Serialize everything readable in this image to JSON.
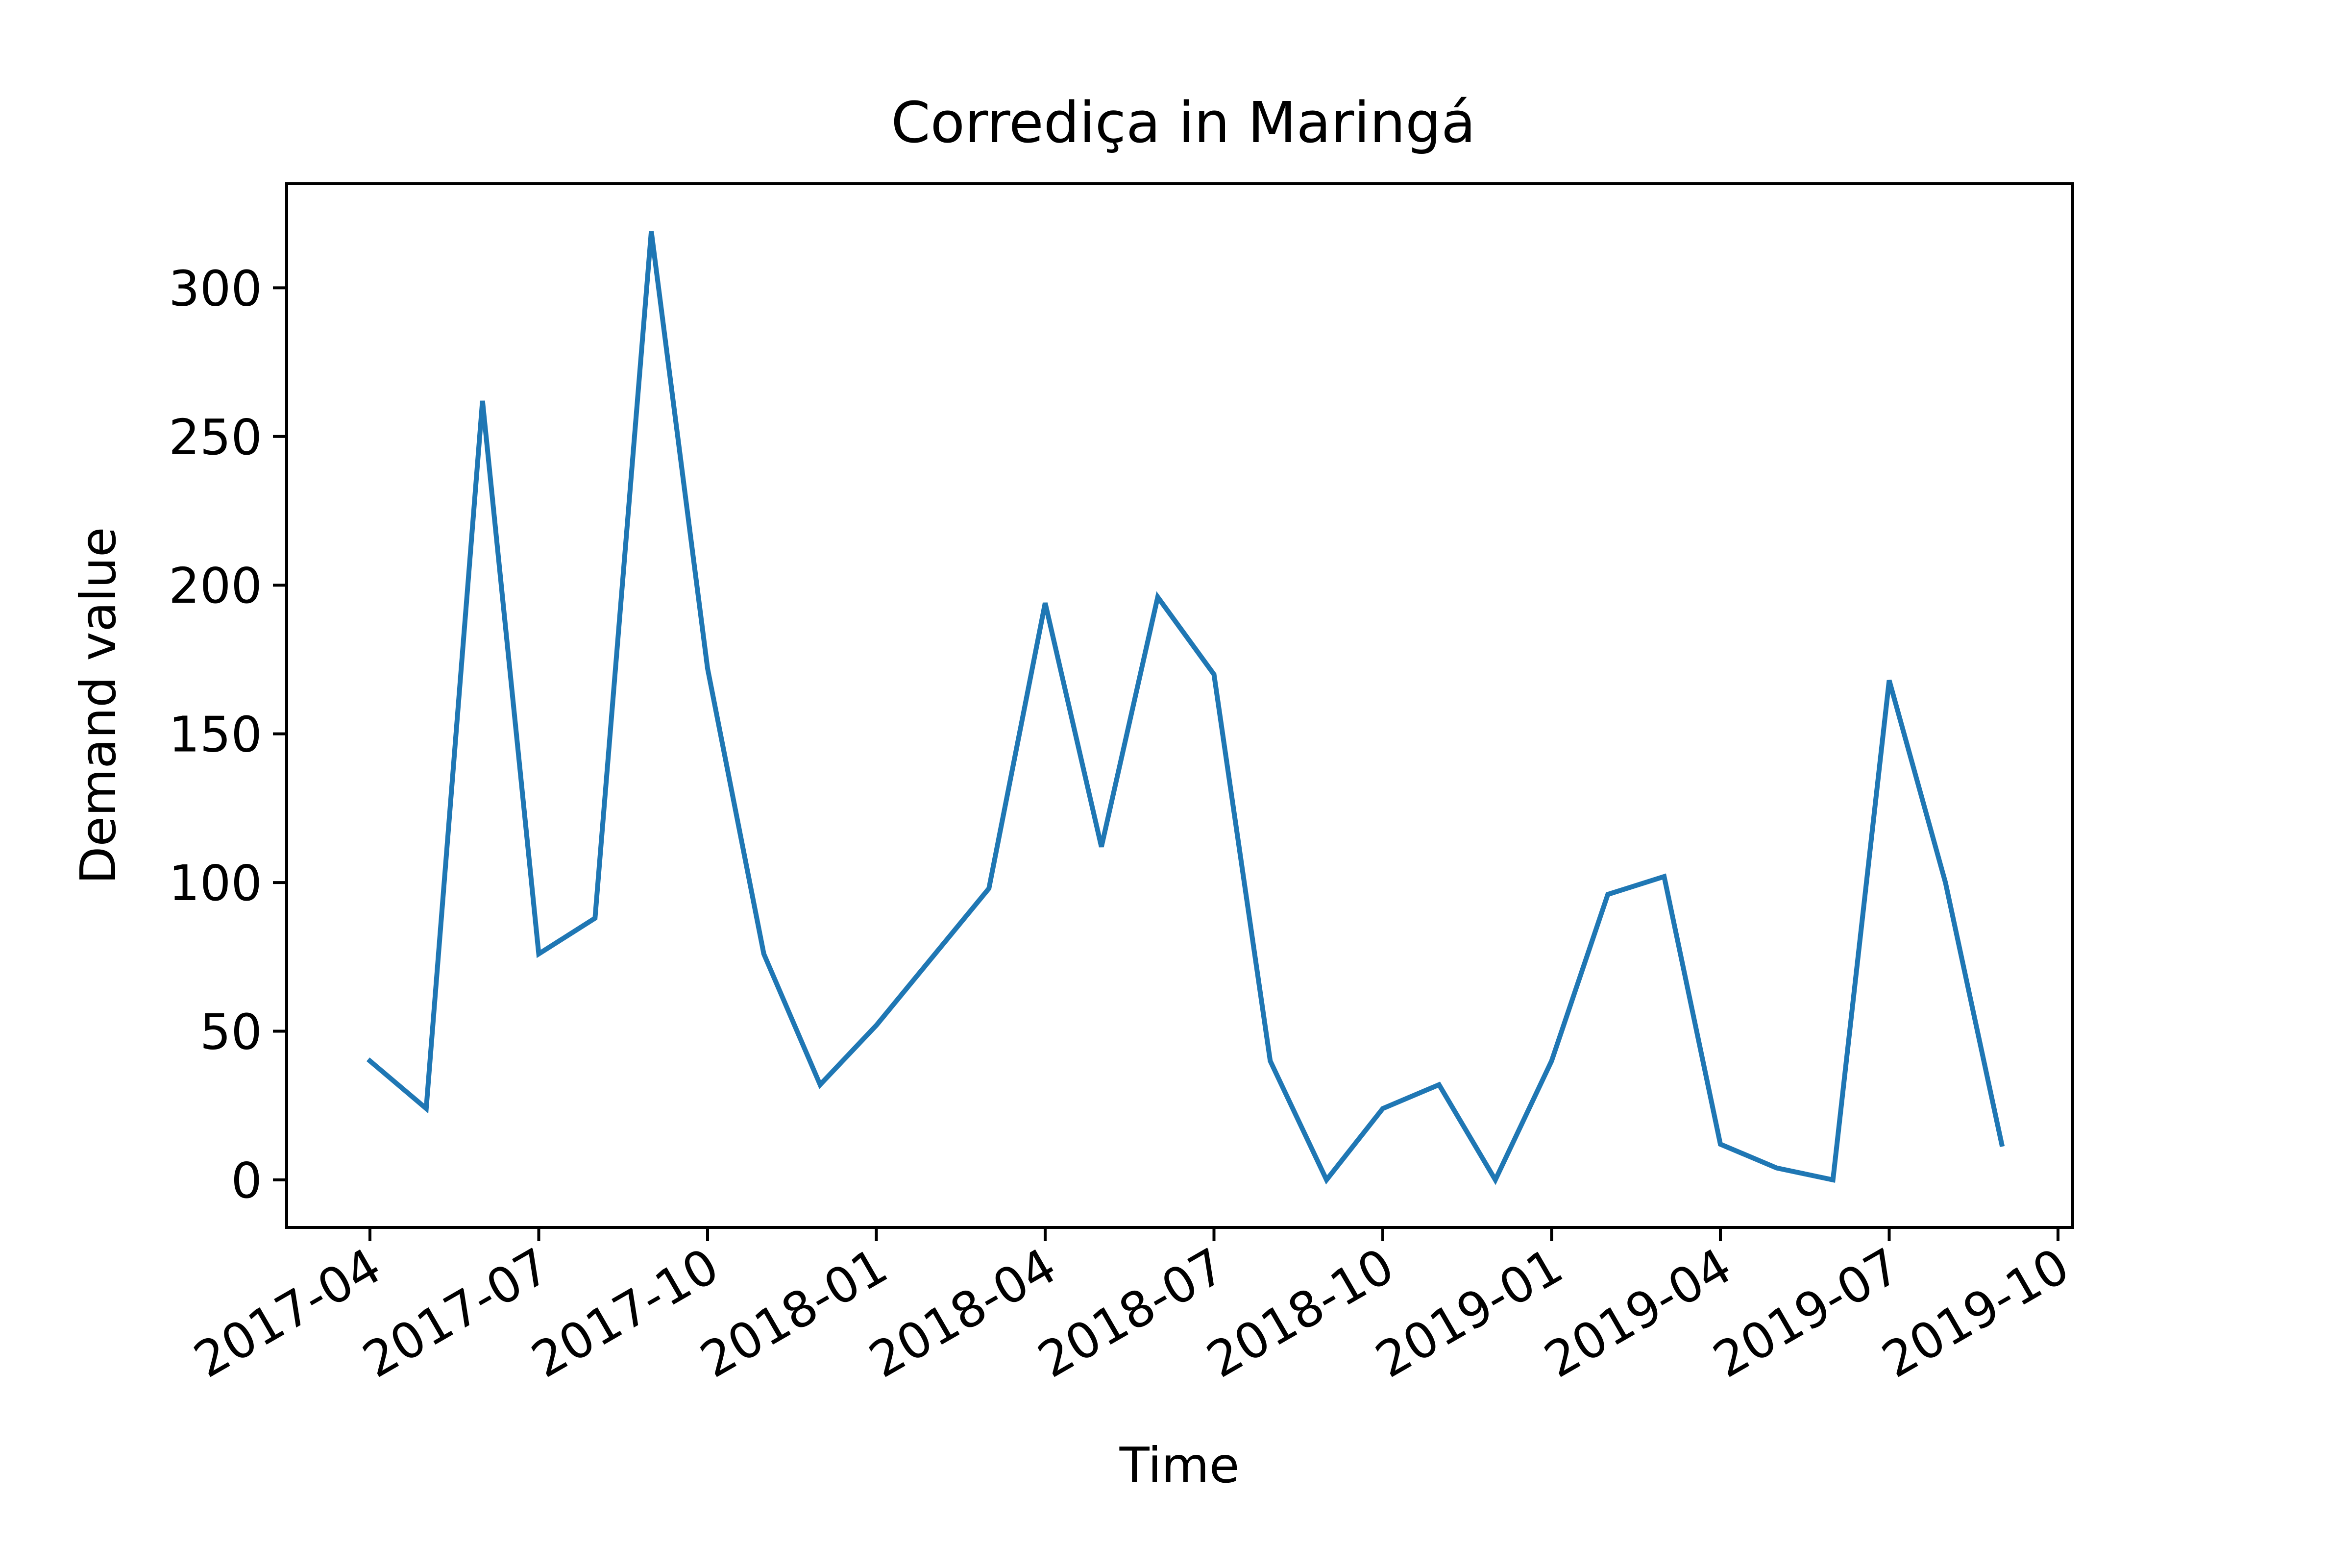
{
  "chart_data": {
    "type": "line",
    "title": "Corrediça in Maringá",
    "xlabel": "Time",
    "ylabel": "Demand value",
    "ylim": [
      -16,
      335
    ],
    "y_ticks": [
      0,
      50,
      100,
      150,
      200,
      250,
      300
    ],
    "x_ticks": [
      "2017-04",
      "2017-07",
      "2017-10",
      "2018-01",
      "2018-04",
      "2018-07",
      "2018-10",
      "2019-01",
      "2019-04",
      "2019-07",
      "2019-10"
    ],
    "grid": false,
    "series": [
      {
        "color": "#1f77b4",
        "x": [
          "2017-04",
          "2017-05",
          "2017-06",
          "2017-07",
          "2017-08",
          "2017-09",
          "2017-10",
          "2017-11",
          "2017-12",
          "2018-01",
          "2018-02",
          "2018-03",
          "2018-04",
          "2018-05",
          "2018-06",
          "2018-07",
          "2018-08",
          "2018-09",
          "2018-10",
          "2018-11",
          "2018-12",
          "2019-01",
          "2019-02",
          "2019-03",
          "2019-04",
          "2019-05",
          "2019-06",
          "2019-07",
          "2019-08",
          "2019-09"
        ],
        "values": [
          40,
          24,
          262,
          76,
          88,
          319,
          172,
          76,
          32,
          52,
          75,
          98,
          194,
          112,
          196,
          170,
          40,
          0,
          24,
          32,
          0,
          40,
          96,
          102,
          12,
          4,
          0,
          168,
          100,
          12
        ]
      }
    ]
  }
}
